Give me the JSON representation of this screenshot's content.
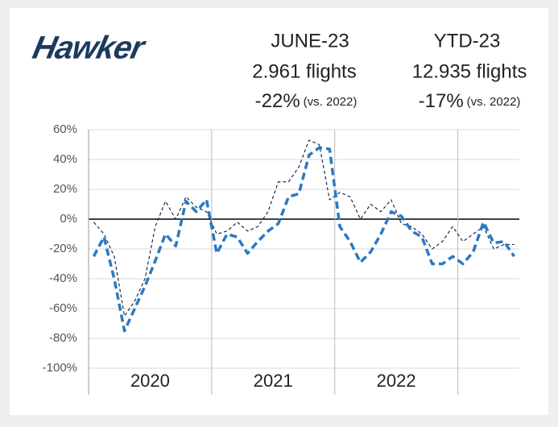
{
  "header": {
    "logo": "Hawker",
    "blocks": [
      {
        "title": "JUNE-23",
        "flights": "2.961 flights",
        "change": "-22%",
        "note": "(vs. 2022)"
      },
      {
        "title": "YTD-23",
        "flights": "12.935 flights",
        "change": "-17%",
        "note": "(vs. 2022)"
      }
    ]
  },
  "chart_data": {
    "type": "line",
    "categories": [
      null,
      null,
      null,
      null,
      null,
      null,
      null,
      null,
      null,
      null,
      null,
      null,
      null,
      null,
      null,
      null,
      null,
      null,
      null,
      null,
      null,
      null,
      null,
      null,
      null,
      null,
      null,
      null,
      null,
      null,
      null,
      null,
      null,
      null,
      null,
      null,
      null,
      null,
      null,
      null,
      null,
      null
    ],
    "year_labels": [
      "2020",
      "2021",
      "2022"
    ],
    "series": [
      {
        "color": "#1c2b4f",
        "width": 1.2,
        "dash": "4 3",
        "values": [
          -2,
          -10,
          -25,
          -65,
          -55,
          -40,
          -5,
          12,
          0,
          15,
          8,
          5,
          -10,
          -8,
          -2,
          -8,
          -5,
          5,
          25,
          25,
          35,
          53,
          50,
          13,
          18,
          15,
          0,
          10,
          5,
          13,
          -3,
          -5,
          -10,
          -20,
          -15,
          -5,
          -15,
          -10,
          -5,
          -20,
          -17,
          -17
        ]
      },
      {
        "color": "#2a79c2",
        "width": 3.5,
        "dash": "9 5",
        "values": [
          -25,
          -12,
          -40,
          -75,
          -60,
          -45,
          -28,
          -10,
          -18,
          12,
          5,
          13,
          -23,
          -10,
          -12,
          -23,
          -15,
          -8,
          -3,
          15,
          17,
          43,
          48,
          47,
          -5,
          -15,
          -29,
          -22,
          -10,
          5,
          2,
          -8,
          -12,
          -30,
          -30,
          -25,
          -30,
          -22,
          -2,
          -16,
          -15,
          -25
        ]
      }
    ],
    "ylim": [
      -100,
      60
    ],
    "yticks": [
      {
        "value": 60,
        "label": "60%"
      },
      {
        "value": 40,
        "label": "40%"
      },
      {
        "value": 20,
        "label": "20%"
      },
      {
        "value": 0,
        "label": "0%"
      },
      {
        "value": -20,
        "label": "-20%"
      },
      {
        "value": -40,
        "label": "-40%"
      },
      {
        "value": -60,
        "label": "-60%"
      },
      {
        "value": -80,
        "label": "-80%"
      },
      {
        "value": -100,
        "label": "-100%"
      }
    ],
    "grid": true
  }
}
